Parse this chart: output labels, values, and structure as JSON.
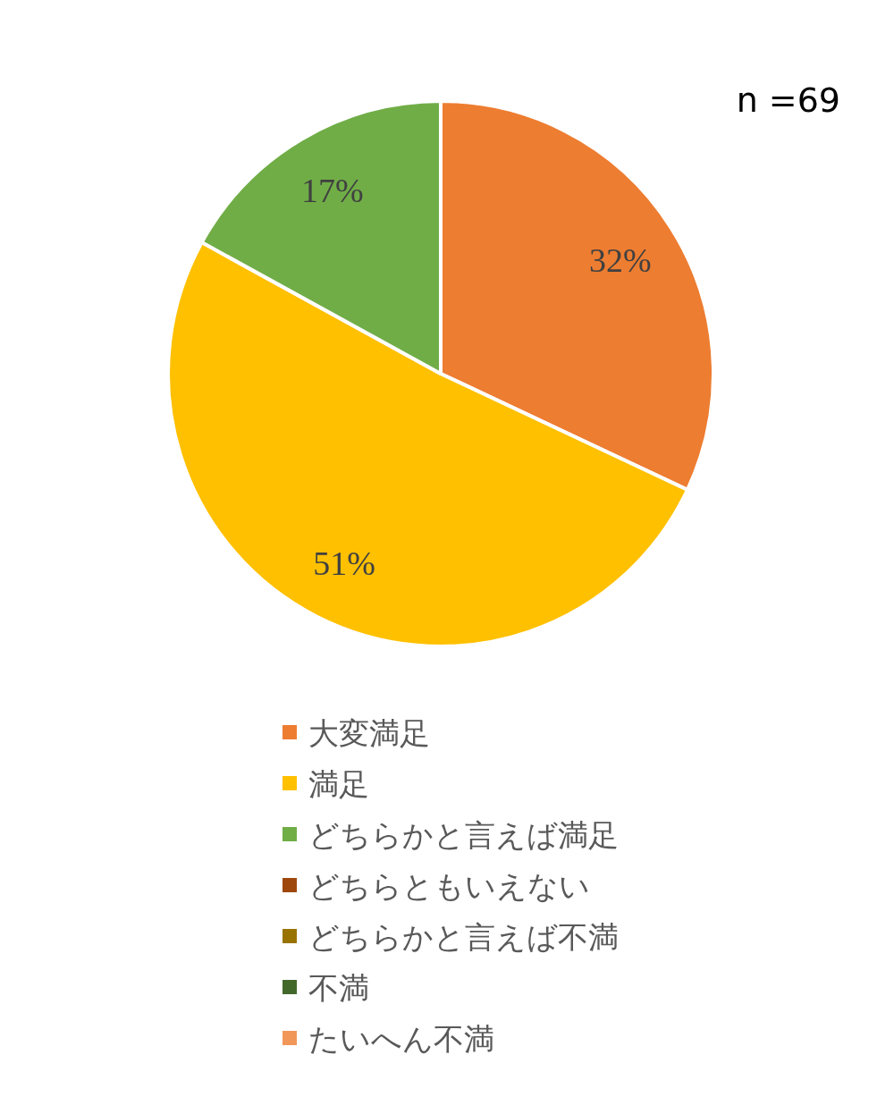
{
  "chart_data": {
    "type": "pie",
    "categories": [
      "大変満足",
      "満足",
      "どちらかと言えば満足",
      "どちらともいえない",
      "どちらかと言えば不満",
      "不満",
      "たいへん不満"
    ],
    "values": [
      32,
      51,
      17,
      0,
      0,
      0,
      0
    ],
    "colors": [
      "#ed7d31",
      "#ffc000",
      "#70ad47",
      "#9e480e",
      "#997300",
      "#43682b",
      "#f1975a"
    ],
    "value_labels": [
      "32%",
      "51%",
      "17%",
      null,
      null,
      null,
      null
    ],
    "annotations": [
      "n =69"
    ],
    "legend": "bottom"
  }
}
